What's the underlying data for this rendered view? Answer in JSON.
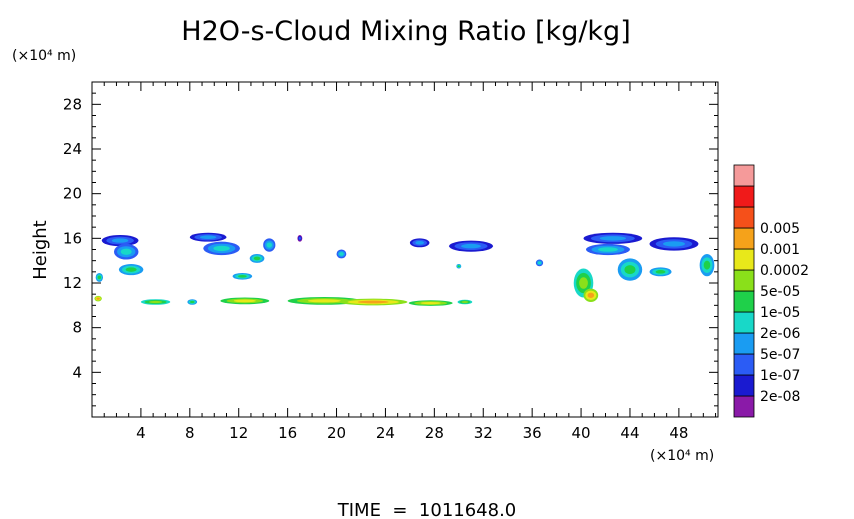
{
  "chart_data": {
    "type": "heatmap",
    "title": "H2O-s-Cloud Mixing Ratio [kg/kg]",
    "ylabel": "Height",
    "xlabel": "",
    "x_unit_label": "(×10⁴ m)",
    "y_unit_label": "(×10⁴ m)",
    "xlim": [
      0,
      51.2
    ],
    "ylim": [
      0,
      30
    ],
    "x_ticks": [
      4,
      8,
      12,
      16,
      20,
      24,
      28,
      32,
      36,
      40,
      44,
      48
    ],
    "y_ticks": [
      4,
      8,
      12,
      16,
      20,
      24,
      28
    ],
    "footer": "TIME  =  1011648.0",
    "colorbar": {
      "colors": [
        "#8a1aa8",
        "#1a1ad0",
        "#2b5cf5",
        "#1a9cf2",
        "#18d8c8",
        "#1fd04a",
        "#8ae01a",
        "#e8e81a",
        "#f5a21a",
        "#f5501a",
        "#f01a1a",
        "#f59a9a"
      ],
      "labels": [
        "2e-08",
        "1e-07",
        "5e-07",
        "2e-06",
        "1e-05",
        "5e-05",
        "0.0002",
        "0.001",
        "0.005"
      ]
    },
    "cloud_patches": [
      {
        "x": 2.3,
        "y": 15.8,
        "rx": 1.5,
        "ry": 0.5,
        "level": 3
      },
      {
        "x": 2.8,
        "y": 14.8,
        "rx": 1.0,
        "ry": 0.7,
        "level": 4
      },
      {
        "x": 3.2,
        "y": 13.2,
        "rx": 1.0,
        "ry": 0.5,
        "level": 5
      },
      {
        "x": 9.5,
        "y": 16.1,
        "rx": 1.5,
        "ry": 0.4,
        "level": 3
      },
      {
        "x": 10.6,
        "y": 15.1,
        "rx": 1.5,
        "ry": 0.6,
        "level": 4
      },
      {
        "x": 14.5,
        "y": 15.4,
        "rx": 0.5,
        "ry": 0.6,
        "level": 4
      },
      {
        "x": 13.5,
        "y": 14.2,
        "rx": 0.6,
        "ry": 0.4,
        "level": 5
      },
      {
        "x": 12.3,
        "y": 12.6,
        "rx": 0.8,
        "ry": 0.3,
        "level": 5
      },
      {
        "x": 17.0,
        "y": 16.0,
        "rx": 0.2,
        "ry": 0.3,
        "level": 2
      },
      {
        "x": 20.4,
        "y": 14.6,
        "rx": 0.4,
        "ry": 0.4,
        "level": 4
      },
      {
        "x": 26.8,
        "y": 15.6,
        "rx": 0.8,
        "ry": 0.4,
        "level": 3
      },
      {
        "x": 31.0,
        "y": 15.3,
        "rx": 1.8,
        "ry": 0.5,
        "level": 3
      },
      {
        "x": 30.0,
        "y": 13.5,
        "rx": 0.2,
        "ry": 0.2,
        "level": 5
      },
      {
        "x": 36.6,
        "y": 13.8,
        "rx": 0.3,
        "ry": 0.3,
        "level": 4
      },
      {
        "x": 42.6,
        "y": 16.0,
        "rx": 2.4,
        "ry": 0.5,
        "level": 3
      },
      {
        "x": 42.2,
        "y": 15.0,
        "rx": 1.8,
        "ry": 0.5,
        "level": 4
      },
      {
        "x": 47.6,
        "y": 15.5,
        "rx": 2.0,
        "ry": 0.6,
        "level": 3
      },
      {
        "x": 44.0,
        "y": 13.2,
        "rx": 1.0,
        "ry": 1.0,
        "level": 5
      },
      {
        "x": 50.3,
        "y": 13.6,
        "rx": 0.6,
        "ry": 1.0,
        "level": 5
      },
      {
        "x": 40.2,
        "y": 12.0,
        "rx": 0.8,
        "ry": 1.3,
        "level": 6
      },
      {
        "x": 40.8,
        "y": 10.9,
        "rx": 0.6,
        "ry": 0.6,
        "level": 8
      },
      {
        "x": 46.5,
        "y": 13.0,
        "rx": 0.9,
        "ry": 0.4,
        "level": 5
      },
      {
        "x": 0.6,
        "y": 12.5,
        "rx": 0.3,
        "ry": 0.4,
        "level": 5
      },
      {
        "x": 5.2,
        "y": 10.3,
        "rx": 1.2,
        "ry": 0.25,
        "level": 6
      },
      {
        "x": 8.2,
        "y": 10.3,
        "rx": 0.4,
        "ry": 0.25,
        "level": 5
      },
      {
        "x": 12.5,
        "y": 10.4,
        "rx": 2.0,
        "ry": 0.3,
        "level": 7
      },
      {
        "x": 19.0,
        "y": 10.4,
        "rx": 3.0,
        "ry": 0.35,
        "level": 7
      },
      {
        "x": 23.0,
        "y": 10.3,
        "rx": 2.8,
        "ry": 0.3,
        "level": 8
      },
      {
        "x": 27.7,
        "y": 10.2,
        "rx": 1.8,
        "ry": 0.25,
        "level": 7
      },
      {
        "x": 30.5,
        "y": 10.3,
        "rx": 0.6,
        "ry": 0.2,
        "level": 6
      },
      {
        "x": 0.5,
        "y": 10.6,
        "rx": 0.3,
        "ry": 0.25,
        "level": 8
      }
    ]
  }
}
